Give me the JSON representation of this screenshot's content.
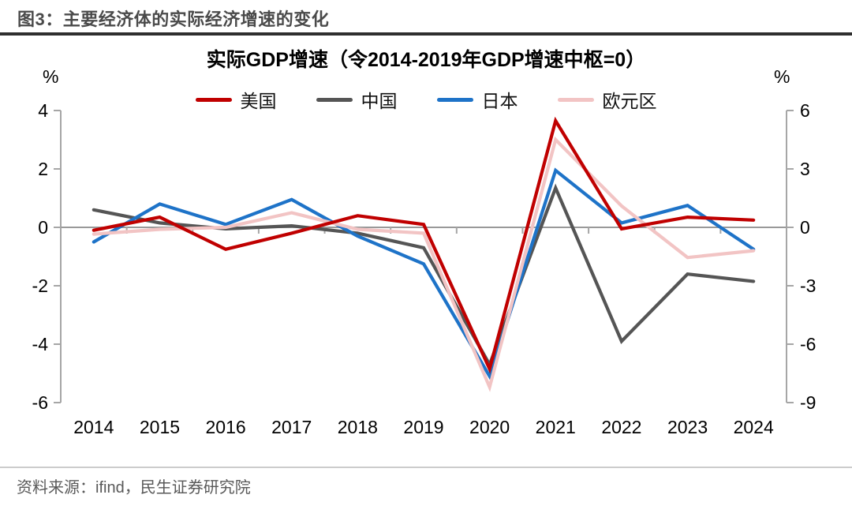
{
  "page": {
    "title": "图3：主要经济体的实际经济增速的变化",
    "source": "资料来源：ifind，民生证券研究院"
  },
  "chart_data": {
    "type": "line",
    "title": "实际GDP增速（令2014-2019年GDP增速中枢=0）",
    "grid": false,
    "legend_position": "top",
    "categories": [
      "2014",
      "2015",
      "2016",
      "2017",
      "2018",
      "2019",
      "2020",
      "2021",
      "2022",
      "2023",
      "2024"
    ],
    "left_axis": {
      "unit_label": "%",
      "ticks": [
        "4",
        "2",
        "0",
        "-2",
        "-4",
        "-6"
      ],
      "range": [
        -6,
        4
      ]
    },
    "right_axis": {
      "unit_label": "%",
      "ticks": [
        "6",
        "3",
        "0",
        "-3",
        "-6",
        "-9"
      ],
      "range": [
        -9,
        6
      ]
    },
    "series": [
      {
        "name": "美国",
        "color": "#C00000",
        "axis": "left",
        "values": [
          -0.1,
          0.35,
          -0.75,
          -0.2,
          0.4,
          0.1,
          -4.85,
          3.65,
          -0.05,
          0.35,
          0.25
        ]
      },
      {
        "name": "中国",
        "color": "#555555",
        "axis": "left",
        "values": [
          0.6,
          0.15,
          -0.05,
          0.05,
          -0.2,
          -0.7,
          -4.7,
          1.35,
          -3.9,
          -1.6,
          -1.85
        ]
      },
      {
        "name": "日本",
        "color": "#1E73C8",
        "axis": "left",
        "values": [
          -0.5,
          0.8,
          0.1,
          0.95,
          -0.3,
          -1.25,
          -5.1,
          1.95,
          0.15,
          0.75,
          -0.75
        ]
      },
      {
        "name": "欧元区",
        "color": "#F2C4C4",
        "axis": "right",
        "values": [
          -0.35,
          -0.1,
          0.0,
          0.75,
          -0.1,
          -0.3,
          -8.2,
          4.5,
          1.1,
          -1.55,
          -1.2
        ]
      }
    ],
    "colors": {
      "axis_line": "#A6A6A6",
      "zero_line": "#999999",
      "tick_text": "#000000"
    }
  }
}
